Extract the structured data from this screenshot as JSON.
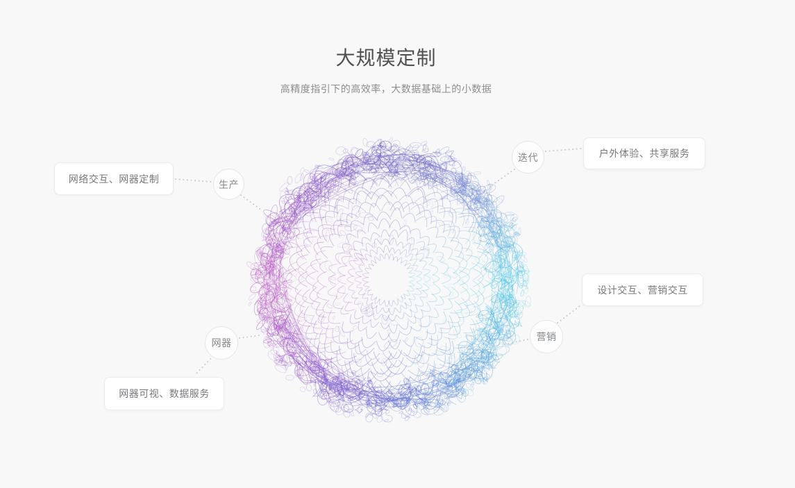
{
  "page": {
    "background_color": "#f8f8f8",
    "title": "大规模定制",
    "subtitle": "高精度指引下的高效率，大数据基础上的小数据"
  },
  "callouts": {
    "production": {
      "circle_label": "生产",
      "box_label": "网络交互、网器定制"
    },
    "iteration": {
      "circle_label": "迭代",
      "box_label": "户外体验、共享服务"
    },
    "marketing": {
      "circle_label": "营销",
      "box_label": "设计交互、营销交互"
    },
    "device": {
      "circle_label": "网器",
      "box_label": "网器可视、数据服务"
    }
  },
  "graphic": {
    "type": "generative-scribble-sphere",
    "palette_clockwise_from_right": [
      "#4ecfe8",
      "#57a3dc",
      "#5a5ed0",
      "#9a5ccc",
      "#c25fc4",
      "#9057c8",
      "#6f62c2",
      "#7b8fd4"
    ],
    "connector_color": "#c9c9c9"
  }
}
